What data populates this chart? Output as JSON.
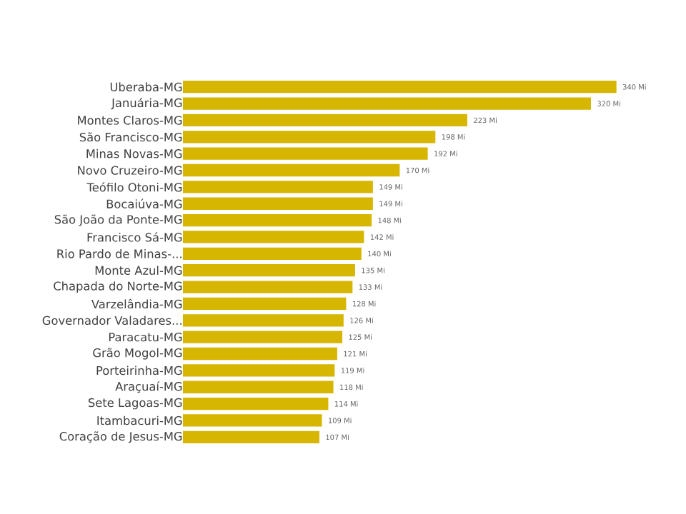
{
  "chart_data": {
    "type": "bar",
    "orientation": "horizontal",
    "color": "#d6b600",
    "categories": [
      "Uberaba-MG",
      "Januária-MG",
      "Montes Claros-MG",
      "São Francisco-MG",
      "Minas Novas-MG",
      "Novo Cruzeiro-MG",
      "Teófilo Otoni-MG",
      "Bocaiúva-MG",
      "São João da Ponte-MG",
      "Francisco Sá-MG",
      "Rio Pardo de Minas-...",
      "Monte Azul-MG",
      "Chapada do Norte-MG",
      "Varzelândia-MG",
      "Governador Valadares...",
      "Paracatu-MG",
      "Grão Mogol-MG",
      "Porteirinha-MG",
      "Araçuaí-MG",
      "Sete Lagoas-MG",
      "Itambacuri-MG",
      "Coração de Jesus-MG"
    ],
    "values": [
      340,
      320,
      223,
      198,
      192,
      170,
      149,
      149,
      148,
      142,
      140,
      135,
      133,
      128,
      126,
      125,
      121,
      119,
      118,
      114,
      109,
      107
    ],
    "value_labels": [
      "340 Mi",
      "320 Mi",
      "223 Mi",
      "198 Mi",
      "192 Mi",
      "170 Mi",
      "149 Mi",
      "149 Mi",
      "148 Mi",
      "142 Mi",
      "140 Mi",
      "135 Mi",
      "133 Mi",
      "128 Mi",
      "126 Mi",
      "125 Mi",
      "121 Mi",
      "119 Mi",
      "118 Mi",
      "114 Mi",
      "109 Mi",
      "107 Mi"
    ]
  }
}
